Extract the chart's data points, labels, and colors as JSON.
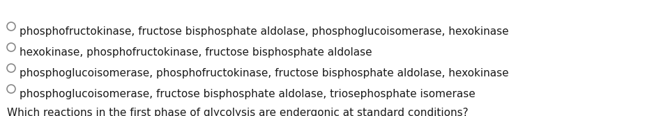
{
  "question": "Which reactions in the first phase of glycolysis are endergonic at standard conditions?",
  "options": [
    "phosphofructokinase, fructose bisphosphate aldolase, phosphoglucoisomerase, hexokinase",
    "hexokinase, phosphofructokinase, fructose bisphosphate aldolase",
    "phosphoglucoisomerase, phosphofructokinase, fructose bisphosphate aldolase, hexokinase",
    "phosphoglucoisomerase, fructose bisphosphate aldolase, triosephosphate isomerase"
  ],
  "background_color": "#ffffff",
  "text_color": "#1a1a1a",
  "circle_color": "#888888",
  "question_fontsize": 11.0,
  "option_fontsize": 11.0,
  "fig_width": 9.58,
  "fig_height": 1.67,
  "dpi": 100
}
